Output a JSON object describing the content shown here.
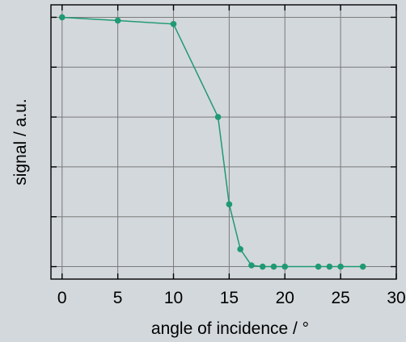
{
  "chart_data": {
    "type": "line",
    "xlabel": "angle of incidence / °",
    "ylabel": "signal / a.u.",
    "xlim": [
      -1,
      30
    ],
    "ylim": [
      0,
      1.1
    ],
    "grid": true,
    "x_ticks": [
      0,
      5,
      10,
      15,
      20,
      25,
      30
    ],
    "x_tick_labels": [
      "0",
      "5",
      "10",
      "15",
      "20",
      "25",
      "30"
    ],
    "y_ticks": [
      0.05,
      0.25,
      0.45,
      0.65,
      0.85,
      1.05
    ],
    "y_tick_labels_visible": false,
    "line_color": "#1f9a72",
    "series": [
      {
        "x": [
          0,
          5,
          10,
          14,
          15,
          16,
          17,
          18,
          19,
          20,
          23,
          24,
          25,
          27
        ],
        "y": [
          1.05,
          1.037,
          1.023,
          0.65,
          0.3,
          0.12,
          0.055,
          0.05,
          0.05,
          0.05,
          0.05,
          0.05,
          0.05,
          0.05
        ]
      }
    ]
  }
}
